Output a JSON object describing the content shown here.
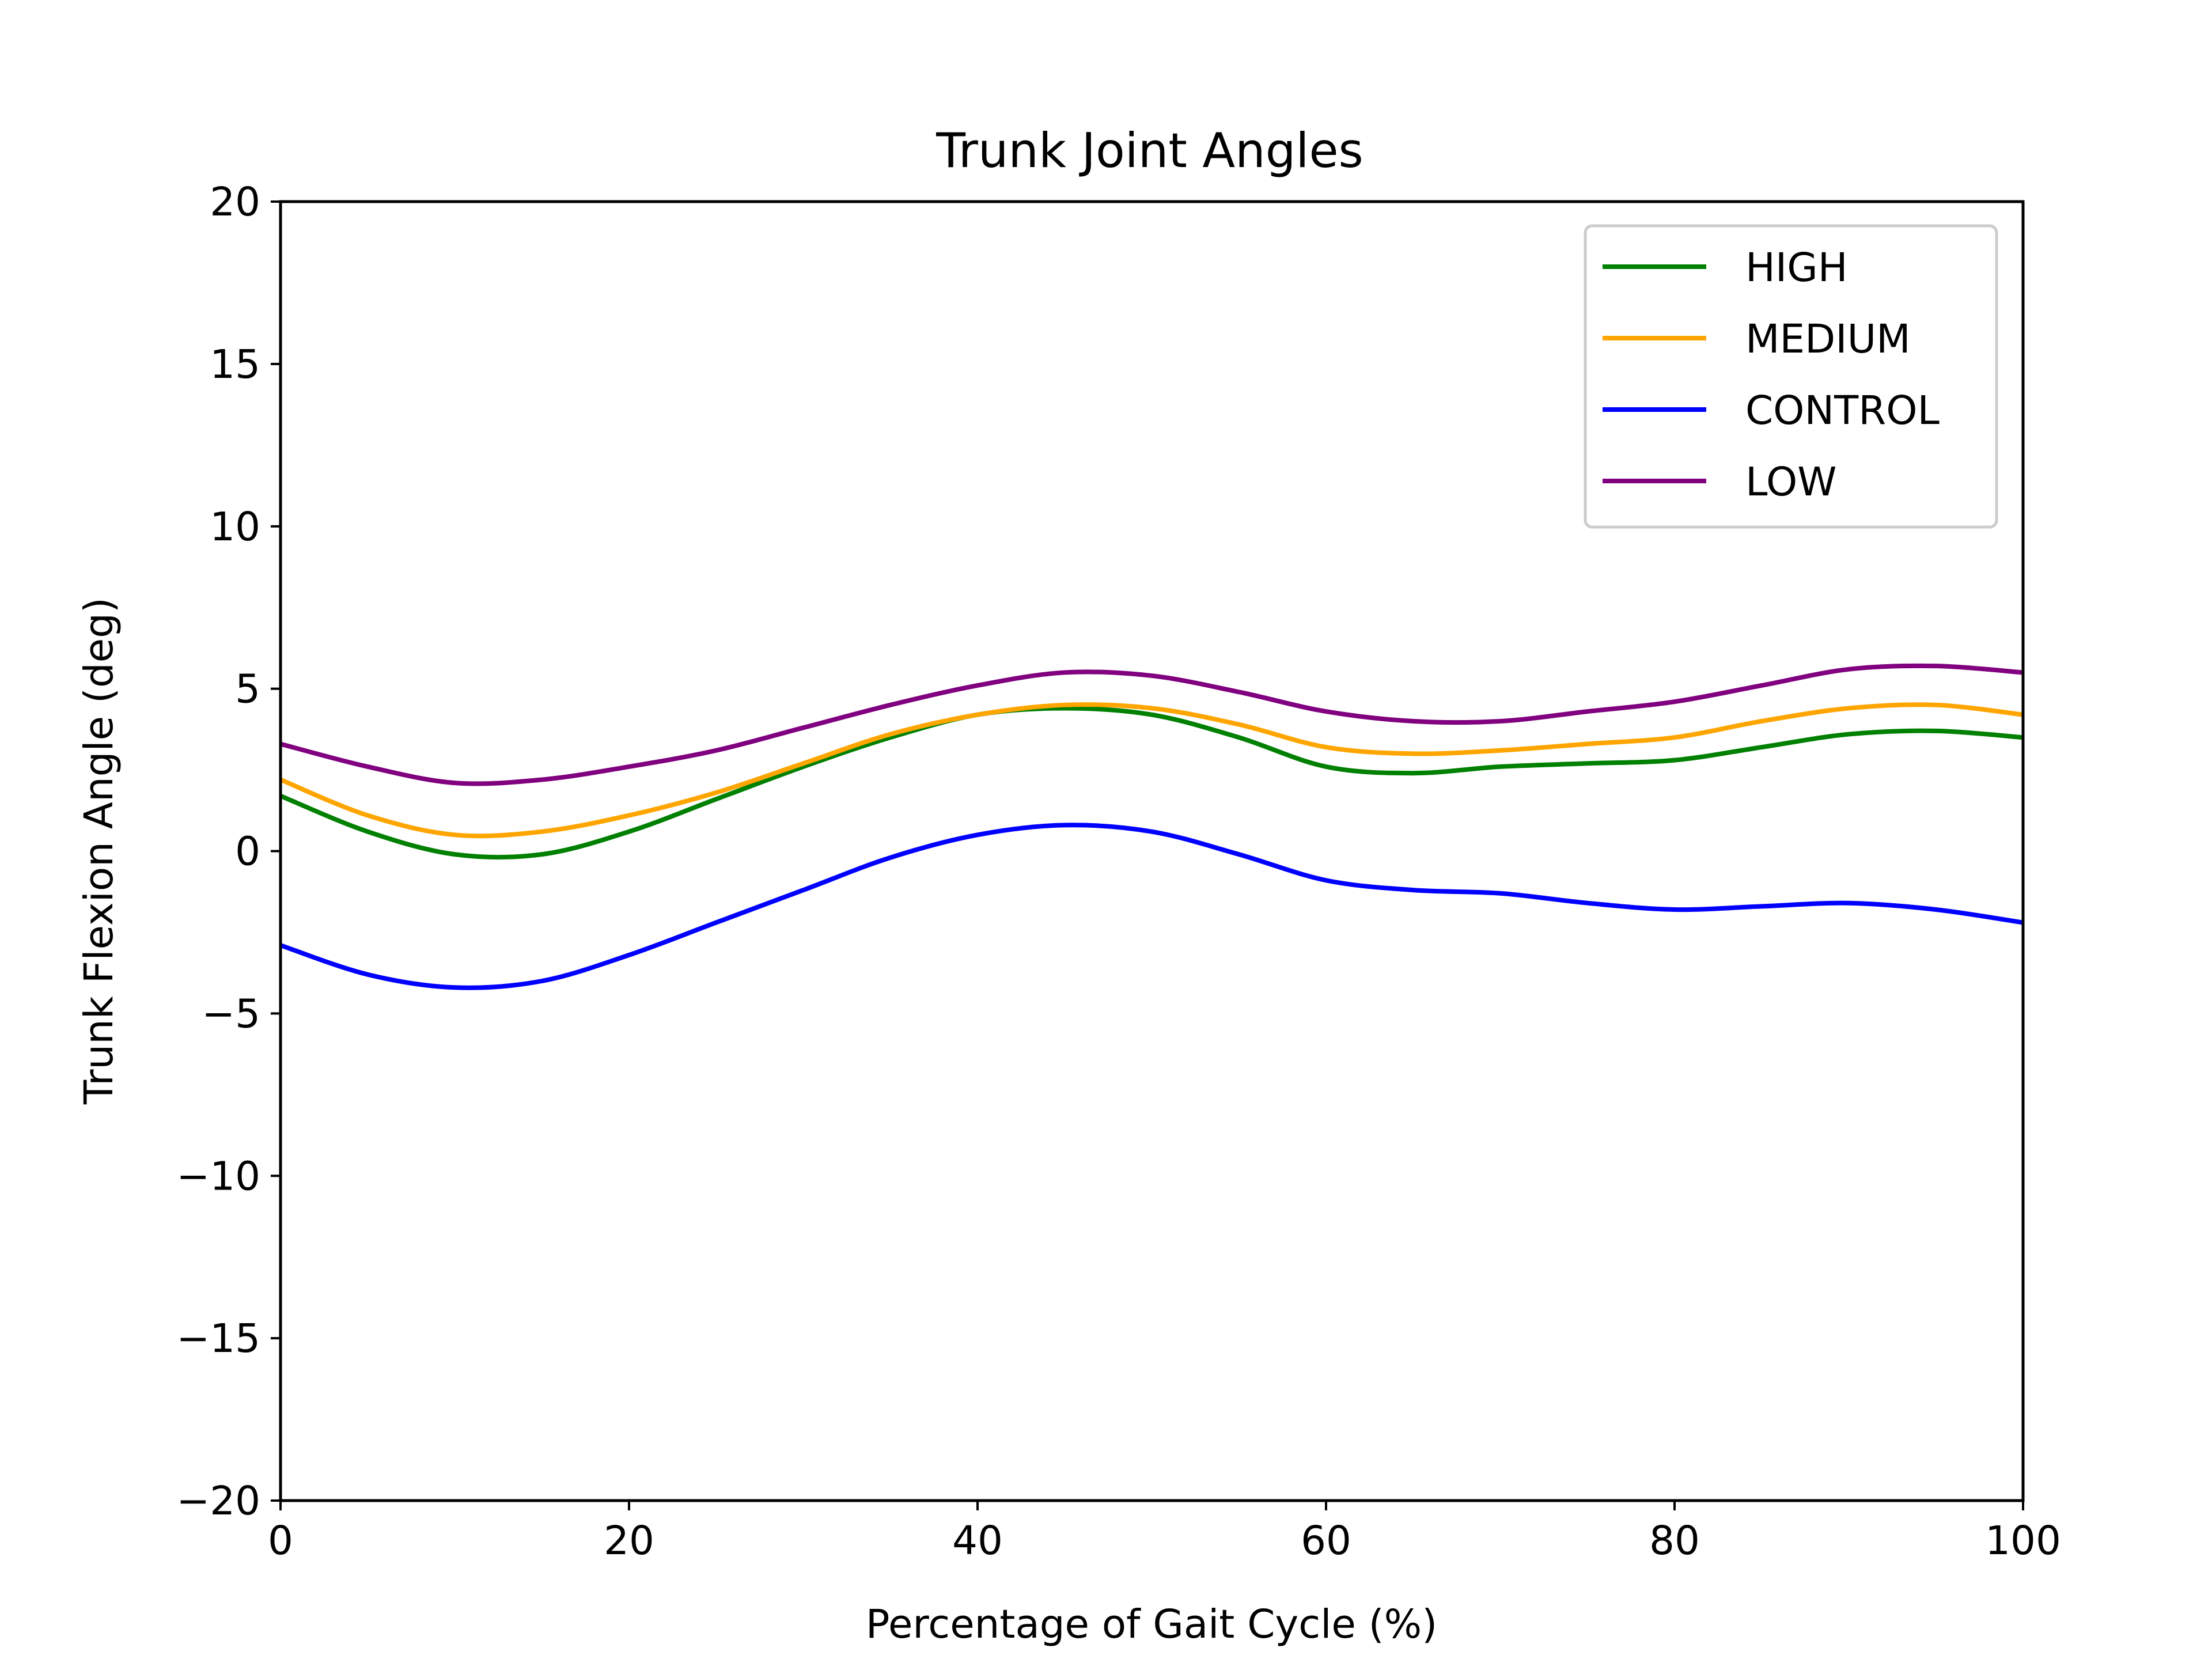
{
  "chart_data": {
    "type": "line",
    "title": "Trunk Joint Angles",
    "xlabel": "Percentage of Gait Cycle (%)",
    "ylabel": "Trunk Flexion Angle (deg)",
    "xlim": [
      0,
      100
    ],
    "ylim": [
      -20,
      20
    ],
    "x_ticks": [
      0,
      20,
      40,
      60,
      80,
      100
    ],
    "x_tick_labels": [
      "0",
      "20",
      "40",
      "60",
      "80",
      "100"
    ],
    "y_ticks": [
      -20,
      -15,
      -10,
      -5,
      0,
      5,
      10,
      15,
      20
    ],
    "y_tick_labels": [
      "−20",
      "−15",
      "−10",
      "−5",
      "0",
      "5",
      "10",
      "15",
      "20"
    ],
    "grid": false,
    "legend_position": "top-right",
    "x": [
      0,
      5,
      10,
      15,
      20,
      25,
      30,
      35,
      40,
      45,
      50,
      55,
      60,
      65,
      70,
      75,
      80,
      85,
      90,
      95,
      100
    ],
    "series": [
      {
        "name": "HIGH",
        "color": "#008000",
        "values": [
          1.7,
          0.6,
          -0.1,
          -0.1,
          0.6,
          1.6,
          2.6,
          3.5,
          4.2,
          4.4,
          4.2,
          3.5,
          2.6,
          2.4,
          2.6,
          2.7,
          2.8,
          3.2,
          3.6,
          3.7,
          3.5
        ]
      },
      {
        "name": "MEDIUM",
        "color": "#ffa500",
        "values": [
          2.2,
          1.1,
          0.5,
          0.6,
          1.1,
          1.8,
          2.7,
          3.6,
          4.2,
          4.5,
          4.4,
          3.9,
          3.2,
          3.0,
          3.1,
          3.3,
          3.5,
          4.0,
          4.4,
          4.5,
          4.2
        ]
      },
      {
        "name": "CONTROL",
        "color": "#0000ff",
        "values": [
          -2.9,
          -3.8,
          -4.2,
          -4.0,
          -3.2,
          -2.2,
          -1.2,
          -0.2,
          0.5,
          0.8,
          0.6,
          -0.1,
          -0.9,
          -1.2,
          -1.3,
          -1.6,
          -1.8,
          -1.7,
          -1.6,
          -1.8,
          -2.2
        ]
      },
      {
        "name": "LOW",
        "color": "#800080",
        "values": [
          3.3,
          2.6,
          2.1,
          2.2,
          2.6,
          3.1,
          3.8,
          4.5,
          5.1,
          5.5,
          5.4,
          4.9,
          4.3,
          4.0,
          4.0,
          4.3,
          4.6,
          5.1,
          5.6,
          5.7,
          5.5
        ]
      }
    ]
  }
}
